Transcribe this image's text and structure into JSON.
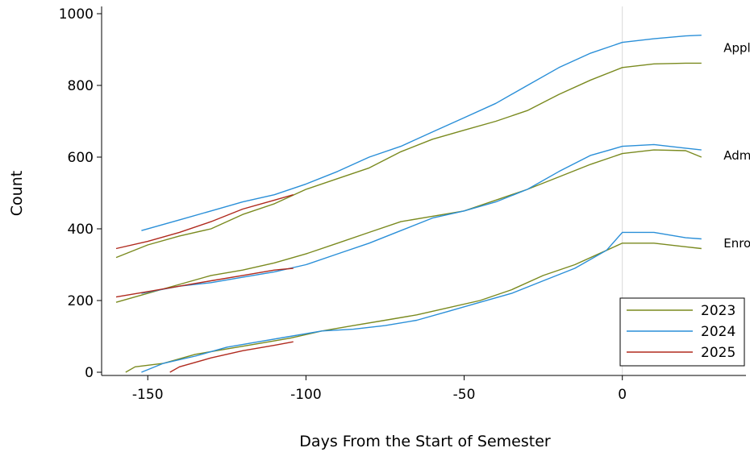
{
  "chart_data": {
    "type": "line",
    "xlabel": "Days From the Start of Semester",
    "ylabel": "Count",
    "xlim": [
      -160,
      35
    ],
    "ylim": [
      0,
      1000
    ],
    "x_ticks": [
      -150,
      -100,
      -50,
      0
    ],
    "x_tick_labels": [
      "-150",
      "-100",
      "-50",
      "0"
    ],
    "y_ticks": [
      0,
      200,
      400,
      600,
      800,
      1000
    ],
    "y_tick_labels": [
      "0",
      "200",
      "400",
      "600",
      "800",
      "1000"
    ],
    "reference_line_x": 0,
    "grid": false,
    "legend_position": "bottom-right",
    "legend": [
      {
        "label": "2023",
        "color": "#7a8a1f"
      },
      {
        "label": "2024",
        "color": "#2a8fd8"
      },
      {
        "label": "2025",
        "color": "#b02a1e"
      }
    ],
    "annotations": [
      {
        "text": "Applicants",
        "x": 32,
        "y": 905
      },
      {
        "text": "Admissions",
        "x": 32,
        "y": 605
      },
      {
        "text": "Enrollment",
        "x": 32,
        "y": 360
      }
    ],
    "series": [
      {
        "name": "2023",
        "metric": "Applicants",
        "color": "#7a8a1f",
        "points": [
          [
            -160,
            320
          ],
          [
            -150,
            355
          ],
          [
            -140,
            380
          ],
          [
            -130,
            400
          ],
          [
            -120,
            440
          ],
          [
            -110,
            470
          ],
          [
            -100,
            510
          ],
          [
            -90,
            540
          ],
          [
            -80,
            570
          ],
          [
            -70,
            615
          ],
          [
            -60,
            650
          ],
          [
            -50,
            675
          ],
          [
            -40,
            700
          ],
          [
            -30,
            730
          ],
          [
            -20,
            775
          ],
          [
            -10,
            815
          ],
          [
            0,
            850
          ],
          [
            10,
            860
          ],
          [
            20,
            862
          ],
          [
            25,
            862
          ]
        ]
      },
      {
        "name": "2024",
        "metric": "Applicants",
        "color": "#2a8fd8",
        "points": [
          [
            -152,
            395
          ],
          [
            -140,
            425
          ],
          [
            -130,
            450
          ],
          [
            -120,
            475
          ],
          [
            -110,
            495
          ],
          [
            -100,
            525
          ],
          [
            -90,
            560
          ],
          [
            -80,
            600
          ],
          [
            -70,
            630
          ],
          [
            -60,
            670
          ],
          [
            -50,
            710
          ],
          [
            -40,
            750
          ],
          [
            -30,
            800
          ],
          [
            -20,
            850
          ],
          [
            -10,
            890
          ],
          [
            0,
            920
          ],
          [
            10,
            930
          ],
          [
            20,
            938
          ],
          [
            25,
            940
          ]
        ]
      },
      {
        "name": "2025",
        "metric": "Applicants",
        "color": "#b02a1e",
        "points": [
          [
            -160,
            345
          ],
          [
            -150,
            365
          ],
          [
            -140,
            390
          ],
          [
            -130,
            420
          ],
          [
            -120,
            455
          ],
          [
            -110,
            480
          ],
          [
            -104,
            495
          ]
        ]
      },
      {
        "name": "2023",
        "metric": "Admissions",
        "color": "#7a8a1f",
        "points": [
          [
            -160,
            195
          ],
          [
            -150,
            220
          ],
          [
            -140,
            245
          ],
          [
            -130,
            270
          ],
          [
            -120,
            285
          ],
          [
            -110,
            305
          ],
          [
            -100,
            330
          ],
          [
            -90,
            360
          ],
          [
            -80,
            390
          ],
          [
            -70,
            420
          ],
          [
            -60,
            435
          ],
          [
            -50,
            450
          ],
          [
            -40,
            480
          ],
          [
            -30,
            510
          ],
          [
            -20,
            545
          ],
          [
            -10,
            580
          ],
          [
            0,
            610
          ],
          [
            10,
            620
          ],
          [
            20,
            618
          ],
          [
            25,
            600
          ]
        ]
      },
      {
        "name": "2024",
        "metric": "Admissions",
        "color": "#2a8fd8",
        "points": [
          [
            -152,
            220
          ],
          [
            -140,
            240
          ],
          [
            -130,
            250
          ],
          [
            -120,
            265
          ],
          [
            -110,
            280
          ],
          [
            -100,
            300
          ],
          [
            -90,
            330
          ],
          [
            -80,
            360
          ],
          [
            -70,
            395
          ],
          [
            -60,
            430
          ],
          [
            -50,
            450
          ],
          [
            -40,
            475
          ],
          [
            -30,
            510
          ],
          [
            -20,
            560
          ],
          [
            -10,
            605
          ],
          [
            0,
            630
          ],
          [
            10,
            635
          ],
          [
            20,
            625
          ],
          [
            25,
            620
          ]
        ]
      },
      {
        "name": "2025",
        "metric": "Admissions",
        "color": "#b02a1e",
        "points": [
          [
            -160,
            210
          ],
          [
            -150,
            225
          ],
          [
            -140,
            240
          ],
          [
            -130,
            255
          ],
          [
            -120,
            270
          ],
          [
            -110,
            285
          ],
          [
            -104,
            290
          ]
        ]
      },
      {
        "name": "2023",
        "metric": "Enrollment",
        "color": "#7a8a1f",
        "points": [
          [
            -157,
            0
          ],
          [
            -154,
            15
          ],
          [
            -145,
            25
          ],
          [
            -135,
            50
          ],
          [
            -125,
            65
          ],
          [
            -115,
            80
          ],
          [
            -105,
            95
          ],
          [
            -95,
            115
          ],
          [
            -85,
            130
          ],
          [
            -75,
            145
          ],
          [
            -65,
            160
          ],
          [
            -55,
            180
          ],
          [
            -45,
            200
          ],
          [
            -35,
            230
          ],
          [
            -25,
            270
          ],
          [
            -15,
            300
          ],
          [
            -5,
            340
          ],
          [
            0,
            360
          ],
          [
            10,
            360
          ],
          [
            20,
            350
          ],
          [
            25,
            345
          ]
        ]
      },
      {
        "name": "2024",
        "metric": "Enrollment",
        "color": "#2a8fd8",
        "points": [
          [
            -152,
            0
          ],
          [
            -145,
            25
          ],
          [
            -135,
            45
          ],
          [
            -125,
            70
          ],
          [
            -115,
            85
          ],
          [
            -105,
            100
          ],
          [
            -95,
            115
          ],
          [
            -85,
            120
          ],
          [
            -75,
            130
          ],
          [
            -65,
            145
          ],
          [
            -55,
            170
          ],
          [
            -45,
            195
          ],
          [
            -35,
            220
          ],
          [
            -25,
            255
          ],
          [
            -15,
            290
          ],
          [
            -5,
            340
          ],
          [
            0,
            390
          ],
          [
            10,
            390
          ],
          [
            20,
            375
          ],
          [
            25,
            372
          ]
        ]
      },
      {
        "name": "2025",
        "metric": "Enrollment",
        "color": "#b02a1e",
        "points": [
          [
            -143,
            0
          ],
          [
            -140,
            15
          ],
          [
            -130,
            40
          ],
          [
            -120,
            60
          ],
          [
            -110,
            75
          ],
          [
            -104,
            85
          ]
        ]
      }
    ]
  }
}
